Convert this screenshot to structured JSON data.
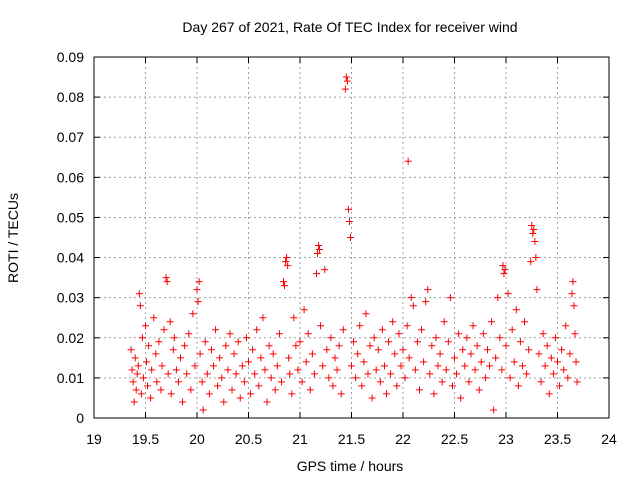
{
  "chart_data": {
    "type": "scatter",
    "title": "Day 267 of 2021, Rate Of TEC Index for receiver wind",
    "xlabel": "GPS time / hours",
    "ylabel": "ROTI / TECUs",
    "xlim": [
      19,
      24
    ],
    "ylim": [
      0,
      0.09
    ],
    "xticks": [
      19,
      19.5,
      20,
      20.5,
      21,
      21.5,
      22,
      22.5,
      23,
      23.5,
      24
    ],
    "xtick_labels": [
      "19",
      "19.5",
      "20",
      "20.5",
      "21",
      "21.5",
      "22",
      "22.5",
      "23",
      "23.5",
      "24"
    ],
    "yticks": [
      0,
      0.01,
      0.02,
      0.03,
      0.04,
      0.05,
      0.06,
      0.07,
      0.08,
      0.09
    ],
    "ytick_labels": [
      "0",
      "0.01",
      "0.02",
      "0.03",
      "0.04",
      "0.05",
      "0.06",
      "0.07",
      "0.08",
      "0.09"
    ],
    "grid": true,
    "marker": "+",
    "color": "#ff0000",
    "series": [
      {
        "name": "ROTI",
        "points": [
          [
            19.36,
            0.017
          ],
          [
            19.37,
            0.012
          ],
          [
            19.38,
            0.009
          ],
          [
            19.39,
            0.004
          ],
          [
            19.4,
            0.015
          ],
          [
            19.41,
            0.007
          ],
          [
            19.42,
            0.011
          ],
          [
            19.43,
            0.013
          ],
          [
            19.44,
            0.031
          ],
          [
            19.45,
            0.028
          ],
          [
            19.46,
            0.006
          ],
          [
            19.47,
            0.02
          ],
          [
            19.48,
            0.01
          ],
          [
            19.5,
            0.023
          ],
          [
            19.51,
            0.014
          ],
          [
            19.52,
            0.008
          ],
          [
            19.53,
            0.018
          ],
          [
            19.55,
            0.005
          ],
          [
            19.56,
            0.012
          ],
          [
            19.58,
            0.025
          ],
          [
            19.6,
            0.016
          ],
          [
            19.61,
            0.009
          ],
          [
            19.63,
            0.019
          ],
          [
            19.65,
            0.007
          ],
          [
            19.66,
            0.013
          ],
          [
            19.68,
            0.022
          ],
          [
            19.7,
            0.035
          ],
          [
            19.71,
            0.034
          ],
          [
            19.72,
            0.011
          ],
          [
            19.74,
            0.024
          ],
          [
            19.75,
            0.006
          ],
          [
            19.77,
            0.017
          ],
          [
            19.78,
            0.02
          ],
          [
            19.8,
            0.012
          ],
          [
            19.82,
            0.009
          ],
          [
            19.84,
            0.015
          ],
          [
            19.86,
            0.004
          ],
          [
            19.88,
            0.018
          ],
          [
            19.9,
            0.011
          ],
          [
            19.92,
            0.021
          ],
          [
            19.94,
            0.007
          ],
          [
            19.96,
            0.026
          ],
          [
            19.98,
            0.013
          ],
          [
            20.0,
            0.032
          ],
          [
            20.01,
            0.029
          ],
          [
            20.02,
            0.034
          ],
          [
            20.03,
            0.016
          ],
          [
            20.05,
            0.009
          ],
          [
            20.06,
            0.002
          ],
          [
            20.08,
            0.019
          ],
          [
            20.1,
            0.011
          ],
          [
            20.12,
            0.006
          ],
          [
            20.14,
            0.017
          ],
          [
            20.16,
            0.013
          ],
          [
            20.18,
            0.022
          ],
          [
            20.2,
            0.008
          ],
          [
            20.22,
            0.015
          ],
          [
            20.24,
            0.01
          ],
          [
            20.26,
            0.004
          ],
          [
            20.28,
            0.018
          ],
          [
            20.3,
            0.012
          ],
          [
            20.32,
            0.021
          ],
          [
            20.34,
            0.007
          ],
          [
            20.36,
            0.016
          ],
          [
            20.38,
            0.011
          ],
          [
            20.4,
            0.019
          ],
          [
            20.42,
            0.005
          ],
          [
            20.44,
            0.013
          ],
          [
            20.46,
            0.009
          ],
          [
            20.48,
            0.02
          ],
          [
            20.5,
            0.014
          ],
          [
            20.52,
            0.006
          ],
          [
            20.54,
            0.017
          ],
          [
            20.56,
            0.011
          ],
          [
            20.58,
            0.022
          ],
          [
            20.6,
            0.008
          ],
          [
            20.62,
            0.015
          ],
          [
            20.64,
            0.025
          ],
          [
            20.66,
            0.012
          ],
          [
            20.68,
            0.004
          ],
          [
            20.7,
            0.018
          ],
          [
            20.72,
            0.01
          ],
          [
            20.74,
            0.016
          ],
          [
            20.76,
            0.007
          ],
          [
            20.78,
            0.013
          ],
          [
            20.8,
            0.021
          ],
          [
            20.82,
            0.009
          ],
          [
            20.84,
            0.034
          ],
          [
            20.85,
            0.033
          ],
          [
            20.86,
            0.039
          ],
          [
            20.87,
            0.04
          ],
          [
            20.88,
            0.038
          ],
          [
            20.89,
            0.015
          ],
          [
            20.9,
            0.011
          ],
          [
            20.92,
            0.006
          ],
          [
            20.94,
            0.025
          ],
          [
            20.96,
            0.018
          ],
          [
            20.98,
            0.012
          ],
          [
            21.0,
            0.019
          ],
          [
            21.02,
            0.009
          ],
          [
            21.04,
            0.027
          ],
          [
            21.06,
            0.014
          ],
          [
            21.08,
            0.021
          ],
          [
            21.1,
            0.007
          ],
          [
            21.12,
            0.016
          ],
          [
            21.14,
            0.011
          ],
          [
            21.16,
            0.036
          ],
          [
            21.17,
            0.041
          ],
          [
            21.18,
            0.043
          ],
          [
            21.19,
            0.042
          ],
          [
            21.2,
            0.023
          ],
          [
            21.22,
            0.013
          ],
          [
            21.24,
            0.037
          ],
          [
            21.26,
            0.017
          ],
          [
            21.28,
            0.01
          ],
          [
            21.3,
            0.02
          ],
          [
            21.32,
            0.008
          ],
          [
            21.34,
            0.015
          ],
          [
            21.36,
            0.012
          ],
          [
            21.38,
            0.018
          ],
          [
            21.4,
            0.006
          ],
          [
            21.42,
            0.022
          ],
          [
            21.44,
            0.082
          ],
          [
            21.45,
            0.085
          ],
          [
            21.46,
            0.084
          ],
          [
            21.47,
            0.052
          ],
          [
            21.48,
            0.049
          ],
          [
            21.49,
            0.045
          ],
          [
            21.5,
            0.013
          ],
          [
            21.52,
            0.019
          ],
          [
            21.54,
            0.01
          ],
          [
            21.56,
            0.016
          ],
          [
            21.58,
            0.023
          ],
          [
            21.6,
            0.008
          ],
          [
            21.62,
            0.014
          ],
          [
            21.64,
            0.026
          ],
          [
            21.66,
            0.011
          ],
          [
            21.68,
            0.018
          ],
          [
            21.7,
            0.005
          ],
          [
            21.72,
            0.02
          ],
          [
            21.74,
            0.012
          ],
          [
            21.76,
            0.017
          ],
          [
            21.78,
            0.009
          ],
          [
            21.8,
            0.022
          ],
          [
            21.82,
            0.013
          ],
          [
            21.84,
            0.006
          ],
          [
            21.86,
            0.019
          ],
          [
            21.88,
            0.011
          ],
          [
            21.9,
            0.024
          ],
          [
            21.92,
            0.016
          ],
          [
            21.94,
            0.008
          ],
          [
            21.96,
            0.021
          ],
          [
            21.98,
            0.013
          ],
          [
            22.0,
            0.017
          ],
          [
            22.02,
            0.01
          ],
          [
            22.04,
            0.023
          ],
          [
            22.05,
            0.064
          ],
          [
            22.06,
            0.015
          ],
          [
            22.08,
            0.03
          ],
          [
            22.1,
            0.028
          ],
          [
            22.12,
            0.012
          ],
          [
            22.14,
            0.019
          ],
          [
            22.16,
            0.007
          ],
          [
            22.18,
            0.022
          ],
          [
            22.2,
            0.014
          ],
          [
            22.22,
            0.029
          ],
          [
            22.24,
            0.032
          ],
          [
            22.26,
            0.011
          ],
          [
            22.28,
            0.018
          ],
          [
            22.3,
            0.006
          ],
          [
            22.32,
            0.02
          ],
          [
            22.34,
            0.013
          ],
          [
            22.36,
            0.016
          ],
          [
            22.38,
            0.009
          ],
          [
            22.4,
            0.024
          ],
          [
            22.42,
            0.012
          ],
          [
            22.44,
            0.019
          ],
          [
            22.46,
            0.03
          ],
          [
            22.48,
            0.008
          ],
          [
            22.5,
            0.015
          ],
          [
            22.52,
            0.011
          ],
          [
            22.54,
            0.021
          ],
          [
            22.56,
            0.005
          ],
          [
            22.58,
            0.017
          ],
          [
            22.6,
            0.013
          ],
          [
            22.62,
            0.02
          ],
          [
            22.64,
            0.009
          ],
          [
            22.66,
            0.016
          ],
          [
            22.68,
            0.023
          ],
          [
            22.7,
            0.012
          ],
          [
            22.72,
            0.018
          ],
          [
            22.74,
            0.007
          ],
          [
            22.76,
            0.014
          ],
          [
            22.78,
            0.021
          ],
          [
            22.8,
            0.01
          ],
          [
            22.82,
            0.017
          ],
          [
            22.84,
            0.013
          ],
          [
            22.86,
            0.024
          ],
          [
            22.88,
            0.002
          ],
          [
            22.9,
            0.015
          ],
          [
            22.92,
            0.03
          ],
          [
            22.94,
            0.02
          ],
          [
            22.96,
            0.012
          ],
          [
            22.97,
            0.038
          ],
          [
            22.98,
            0.036
          ],
          [
            22.99,
            0.037
          ],
          [
            23.0,
            0.018
          ],
          [
            23.02,
            0.031
          ],
          [
            23.04,
            0.01
          ],
          [
            23.06,
            0.022
          ],
          [
            23.08,
            0.014
          ],
          [
            23.1,
            0.027
          ],
          [
            23.12,
            0.008
          ],
          [
            23.14,
            0.019
          ],
          [
            23.16,
            0.013
          ],
          [
            23.18,
            0.024
          ],
          [
            23.2,
            0.011
          ],
          [
            23.22,
            0.017
          ],
          [
            23.24,
            0.039
          ],
          [
            23.25,
            0.048
          ],
          [
            23.26,
            0.046
          ],
          [
            23.27,
            0.047
          ],
          [
            23.28,
            0.044
          ],
          [
            23.29,
            0.04
          ],
          [
            23.3,
            0.032
          ],
          [
            23.32,
            0.016
          ],
          [
            23.34,
            0.009
          ],
          [
            23.36,
            0.021
          ],
          [
            23.38,
            0.013
          ],
          [
            23.4,
            0.018
          ],
          [
            23.42,
            0.006
          ],
          [
            23.44,
            0.015
          ],
          [
            23.46,
            0.011
          ],
          [
            23.48,
            0.02
          ],
          [
            23.5,
            0.014
          ],
          [
            23.52,
            0.008
          ],
          [
            23.54,
            0.017
          ],
          [
            23.56,
            0.012
          ],
          [
            23.58,
            0.023
          ],
          [
            23.6,
            0.01
          ],
          [
            23.62,
            0.016
          ],
          [
            23.64,
            0.031
          ],
          [
            23.65,
            0.034
          ],
          [
            23.66,
            0.028
          ],
          [
            23.67,
            0.021
          ],
          [
            23.68,
            0.014
          ],
          [
            23.69,
            0.009
          ]
        ]
      }
    ]
  }
}
